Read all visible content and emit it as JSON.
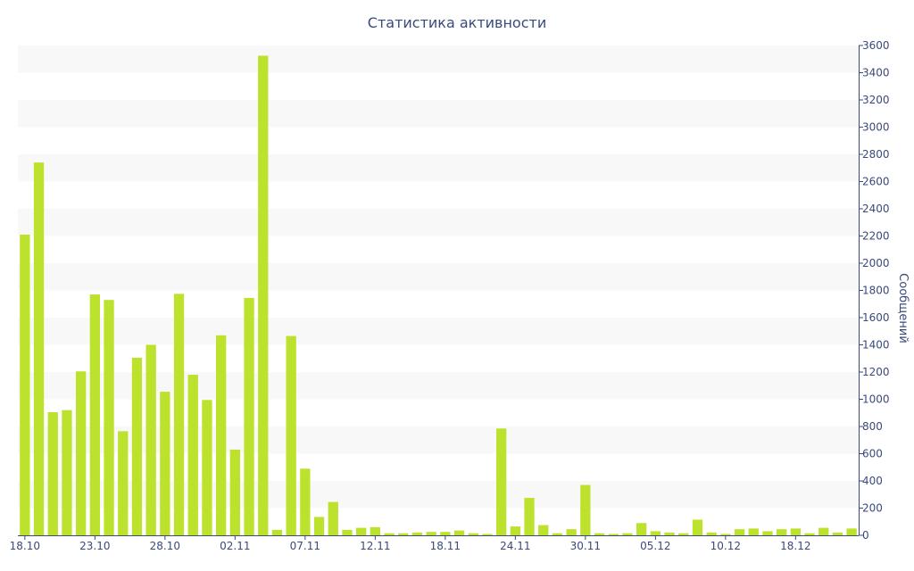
{
  "chart_data": {
    "type": "bar",
    "title": "Статистика активности",
    "xlabel": "",
    "ylabel": "Сообщений",
    "y_axis_side": "right",
    "ylim": [
      0,
      3600
    ],
    "y_ticks": [
      0,
      200,
      400,
      600,
      800,
      1000,
      1200,
      1400,
      1600,
      1800,
      2000,
      2200,
      2400,
      2600,
      2800,
      3000,
      3200,
      3400,
      3600
    ],
    "grid": "alternating horizontal bands",
    "x_tick_labels": [
      {
        "label": "18.10",
        "index": 0
      },
      {
        "label": "23.10",
        "index": 5
      },
      {
        "label": "28.10",
        "index": 10
      },
      {
        "label": "02.11",
        "index": 15
      },
      {
        "label": "07.11",
        "index": 20
      },
      {
        "label": "12.11",
        "index": 25
      },
      {
        "label": "18.11",
        "index": 30
      },
      {
        "label": "24.11",
        "index": 35
      },
      {
        "label": "30.11",
        "index": 40
      },
      {
        "label": "05.12",
        "index": 45
      },
      {
        "label": "10.12",
        "index": 50
      },
      {
        "label": "18.12",
        "index": 55
      }
    ],
    "values": [
      2210,
      2740,
      905,
      920,
      1205,
      1770,
      1730,
      765,
      1305,
      1400,
      1055,
      1775,
      1180,
      995,
      1470,
      630,
      1745,
      3525,
      40,
      1465,
      490,
      135,
      245,
      40,
      55,
      60,
      15,
      15,
      20,
      25,
      25,
      35,
      15,
      10,
      785,
      65,
      275,
      75,
      15,
      45,
      370,
      15,
      10,
      15,
      90,
      30,
      20,
      15,
      115,
      20,
      10,
      45,
      50,
      30,
      45,
      50,
      15,
      55,
      20,
      50
    ],
    "colors": {
      "bar": "#bce22d",
      "band": "#f8f8f8",
      "axis": "#3a4a7a",
      "text": "#3a4a7a"
    }
  }
}
